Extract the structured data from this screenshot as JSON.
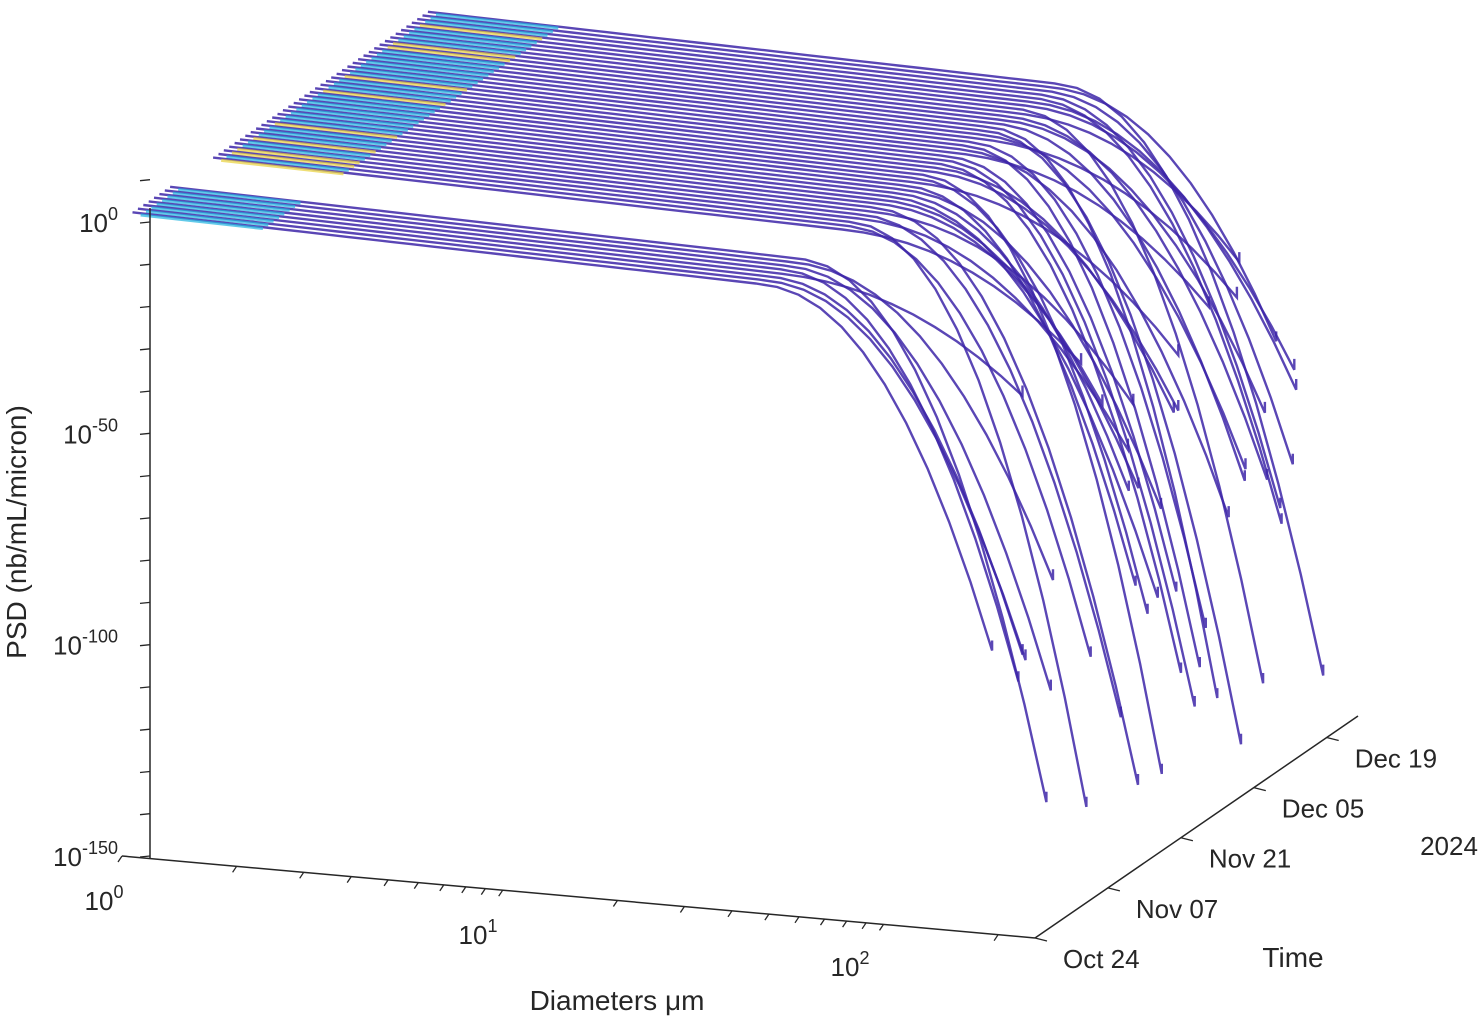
{
  "chart_data": {
    "type": "surface-3d",
    "title": "",
    "zlabel": "PSD (nb/mL/micron)",
    "xlabel": "Diameters μm",
    "ylabel": "Time",
    "year_label": "2024",
    "x_scale": "log",
    "z_scale": "log",
    "xlim": [
      1,
      250
    ],
    "ylim": [
      "2024-10-24",
      "2024-12-25"
    ],
    "zlim": [
      1e-150,
      10000000000.0
    ],
    "x_ticks": [
      {
        "value": 1,
        "base": "10",
        "exp": "0"
      },
      {
        "value": 10,
        "base": "10",
        "exp": "1"
      },
      {
        "value": 100,
        "base": "10",
        "exp": "2"
      }
    ],
    "z_ticks": [
      {
        "value": 1,
        "base": "10",
        "exp": "0"
      },
      {
        "value": 1e-50,
        "base": "10",
        "exp": "-50"
      },
      {
        "value": 1e-100,
        "base": "10",
        "exp": "-100"
      },
      {
        "value": 1e-150,
        "base": "10",
        "exp": "-150"
      }
    ],
    "y_ticks": [
      {
        "date": "2024-10-24",
        "label": "Oct 24"
      },
      {
        "date": "2024-11-07",
        "label": "Nov 07"
      },
      {
        "date": "2024-11-21",
        "label": "Nov 21"
      },
      {
        "date": "2024-12-05",
        "label": "Dec 05"
      },
      {
        "date": "2024-12-19",
        "label": "Dec 19"
      }
    ],
    "colors": {
      "surface": "#3d26a8",
      "surface_light": "#cfcbe6",
      "high": "#1fb3e0",
      "peak": "#e8d23a",
      "axis": "#262626"
    }
  }
}
